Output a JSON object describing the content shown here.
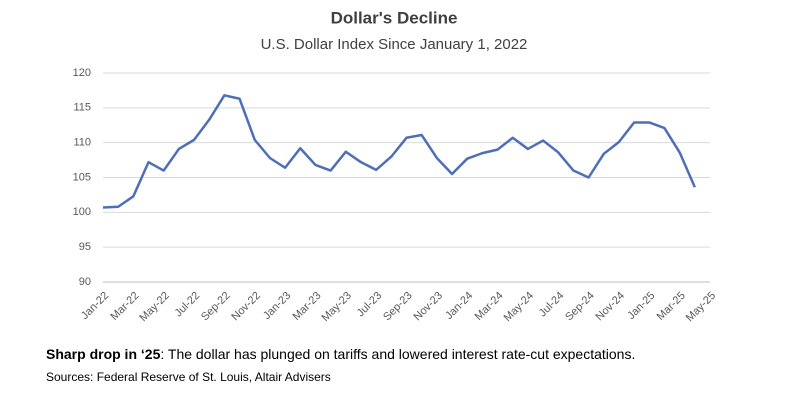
{
  "chart_data": {
    "type": "line",
    "title": "Dollar's Decline",
    "subtitle": "U.S. Dollar Index Since January 1, 2022",
    "categories": [
      "Jan-22",
      null,
      "Mar-22",
      null,
      "May-22",
      null,
      "Jul-22",
      null,
      "Sep-22",
      null,
      "Nov-22",
      null,
      "Jan-23",
      null,
      "Mar-23",
      null,
      "May-23",
      null,
      "Jul-23",
      null,
      "Sep-23",
      null,
      "Nov-23",
      null,
      "Jan-24",
      null,
      "Mar-24",
      null,
      "May-24",
      null,
      "Jul-24",
      null,
      "Sep-24",
      null,
      "Nov-24",
      null,
      "Jan-25",
      null,
      "Mar-25",
      null,
      "May-25"
    ],
    "series": [
      {
        "name": "U.S. Dollar Index",
        "color": "#4e6eb8",
        "values": [
          100.7,
          100.8,
          102.3,
          107.2,
          106,
          109.1,
          110.4,
          113.3,
          116.8,
          116.3,
          110.4,
          107.8,
          106.4,
          109.2,
          106.8,
          106,
          108.7,
          107.2,
          106.1,
          108,
          110.7,
          111.1,
          107.8,
          105.5,
          107.7,
          108.5,
          109,
          110.7,
          109.1,
          110.3,
          108.6,
          106,
          105,
          108.4,
          110.1,
          112.9,
          112.9,
          112.1,
          108.6,
          103.6,
          null
        ]
      }
    ],
    "ylim": [
      90,
      120
    ],
    "yticks": [
      90,
      95,
      100,
      105,
      110,
      115,
      120
    ],
    "grid": true,
    "caption_bold": "Sharp drop in ‘25",
    "caption": ": The dollar has plunged on tariffs and lowered interest rate-cut expectations.",
    "source": "Sources: Federal Reserve of St. Louis, Altair Advisers"
  }
}
